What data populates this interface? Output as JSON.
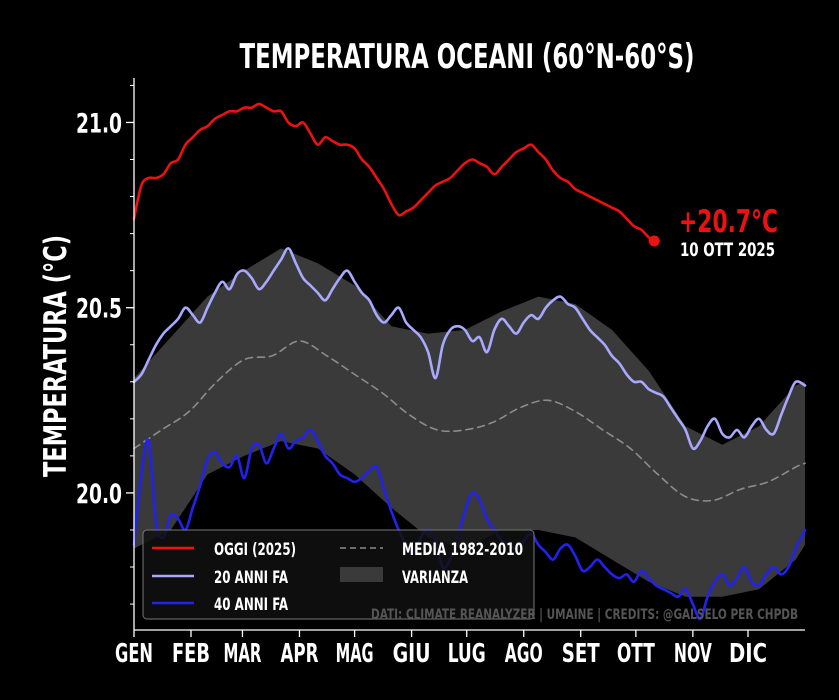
{
  "chart_data": {
    "type": "line",
    "title": "TEMPERATURA OCEANI (60°N-60°S)",
    "ylabel": "TEMPERATURA (°C)",
    "xlabel": "",
    "xlim": [
      0,
      365
    ],
    "ylim": [
      19.63,
      21.12
    ],
    "yticks": [
      {
        "v": 20.0,
        "label": "20.0"
      },
      {
        "v": 20.5,
        "label": "20.5"
      },
      {
        "v": 21.0,
        "label": "21.0"
      }
    ],
    "yminor_step": 0.1,
    "months": [
      {
        "label": "GEN",
        "d": 0
      },
      {
        "label": "FEB",
        "d": 31
      },
      {
        "label": "MAR",
        "d": 59
      },
      {
        "label": "APR",
        "d": 90
      },
      {
        "label": "MAG",
        "d": 120
      },
      {
        "label": "GIU",
        "d": 151
      },
      {
        "label": "LUG",
        "d": 181
      },
      {
        "label": "AGO",
        "d": 212
      },
      {
        "label": "SET",
        "d": 243
      },
      {
        "label": "OTT",
        "d": 273
      },
      {
        "label": "NOV",
        "d": 304
      },
      {
        "label": "DIC",
        "d": 334
      }
    ],
    "band": {
      "name": "VARIANZA",
      "color": "#3a3a3a",
      "x": [
        0,
        20,
        40,
        60,
        80,
        100,
        120,
        140,
        160,
        180,
        200,
        220,
        240,
        260,
        280,
        300,
        320,
        340,
        360,
        365
      ],
      "upper": [
        20.31,
        20.42,
        20.53,
        20.6,
        20.66,
        20.62,
        20.56,
        20.45,
        20.43,
        20.44,
        20.49,
        20.53,
        20.51,
        20.44,
        20.33,
        20.18,
        20.13,
        20.18,
        20.29,
        20.3
      ],
      "lower": [
        19.85,
        19.9,
        20.05,
        20.1,
        20.14,
        20.12,
        20.05,
        19.96,
        19.88,
        19.85,
        19.9,
        19.9,
        19.88,
        19.82,
        19.76,
        19.72,
        19.72,
        19.74,
        19.82,
        19.86
      ]
    },
    "series": [
      {
        "name": "OGGI (2025)",
        "color": "#ee1111",
        "width": 2.6,
        "x": [
          0,
          4,
          8,
          12,
          16,
          20,
          24,
          28,
          32,
          36,
          40,
          44,
          48,
          52,
          56,
          60,
          64,
          68,
          72,
          76,
          80,
          84,
          88,
          92,
          96,
          100,
          104,
          108,
          112,
          116,
          120,
          124,
          128,
          132,
          136,
          140,
          144,
          148,
          152,
          156,
          160,
          164,
          168,
          172,
          176,
          180,
          184,
          188,
          192,
          196,
          200,
          204,
          208,
          212,
          216,
          220,
          224,
          228,
          232,
          236,
          240,
          244,
          248,
          252,
          256,
          260,
          264,
          268,
          272,
          276,
          280,
          283
        ],
        "values": [
          20.74,
          20.83,
          20.85,
          20.85,
          20.86,
          20.89,
          20.9,
          20.94,
          20.96,
          20.98,
          20.99,
          21.01,
          21.02,
          21.03,
          21.03,
          21.04,
          21.04,
          21.05,
          21.04,
          21.03,
          21.03,
          21.0,
          20.99,
          21.0,
          20.97,
          20.94,
          20.96,
          20.95,
          20.94,
          20.94,
          20.93,
          20.9,
          20.88,
          20.85,
          20.82,
          20.78,
          20.75,
          20.76,
          20.77,
          20.79,
          20.81,
          20.83,
          20.84,
          20.85,
          20.87,
          20.89,
          20.9,
          20.89,
          20.88,
          20.86,
          20.88,
          20.9,
          20.92,
          20.93,
          20.94,
          20.92,
          20.9,
          20.87,
          20.85,
          20.84,
          20.82,
          20.81,
          20.8,
          20.79,
          20.78,
          20.77,
          20.76,
          20.74,
          20.72,
          20.71,
          20.69,
          20.68
        ]
      },
      {
        "name": "20 ANNI FA",
        "color": "#a8a8ff",
        "width": 2.6,
        "x": [
          0,
          4,
          8,
          12,
          16,
          20,
          24,
          28,
          32,
          36,
          40,
          44,
          48,
          52,
          56,
          60,
          64,
          68,
          72,
          76,
          80,
          84,
          88,
          92,
          96,
          100,
          104,
          108,
          112,
          116,
          120,
          124,
          128,
          132,
          136,
          140,
          144,
          148,
          152,
          156,
          160,
          164,
          168,
          172,
          176,
          180,
          184,
          188,
          192,
          196,
          200,
          204,
          208,
          212,
          216,
          220,
          224,
          228,
          232,
          236,
          240,
          244,
          248,
          252,
          256,
          260,
          264,
          268,
          272,
          276,
          280,
          284,
          288,
          292,
          296,
          300,
          304,
          308,
          312,
          316,
          320,
          324,
          328,
          332,
          336,
          340,
          344,
          348,
          352,
          356,
          360,
          365
        ],
        "values": [
          20.3,
          20.32,
          20.36,
          20.4,
          20.43,
          20.45,
          20.47,
          20.5,
          20.48,
          20.46,
          20.5,
          20.54,
          20.57,
          20.55,
          20.59,
          20.6,
          20.58,
          20.55,
          20.57,
          20.6,
          20.63,
          20.66,
          20.62,
          20.58,
          20.56,
          20.54,
          20.52,
          20.55,
          20.58,
          20.6,
          20.57,
          20.54,
          20.52,
          20.48,
          20.46,
          20.48,
          20.5,
          20.46,
          20.44,
          20.42,
          20.38,
          20.31,
          20.4,
          20.44,
          20.45,
          20.44,
          20.41,
          20.42,
          20.38,
          20.44,
          20.47,
          20.45,
          20.43,
          20.46,
          20.48,
          20.47,
          20.5,
          20.52,
          20.53,
          20.51,
          20.5,
          20.47,
          20.44,
          20.42,
          20.4,
          20.37,
          20.35,
          20.32,
          20.3,
          20.3,
          20.28,
          20.27,
          20.26,
          20.23,
          20.2,
          20.17,
          20.12,
          20.14,
          20.18,
          20.2,
          20.16,
          20.15,
          20.17,
          20.15,
          20.18,
          20.2,
          20.17,
          20.16,
          20.21,
          20.26,
          20.3,
          20.29
        ]
      },
      {
        "name": "40 ANNI FA",
        "color": "#2222ee",
        "width": 2.6,
        "x": [
          0,
          4,
          8,
          12,
          16,
          20,
          24,
          28,
          32,
          36,
          40,
          44,
          48,
          52,
          56,
          60,
          64,
          68,
          72,
          76,
          80,
          84,
          88,
          92,
          96,
          100,
          104,
          108,
          112,
          116,
          120,
          124,
          128,
          132,
          136,
          140,
          144,
          148,
          152,
          156,
          160,
          164,
          168,
          172,
          176,
          180,
          184,
          188,
          192,
          196,
          200,
          204,
          208,
          212,
          216,
          220,
          224,
          228,
          232,
          236,
          240,
          244,
          248,
          252,
          256,
          260,
          264,
          268,
          272,
          276,
          280,
          284,
          288,
          292,
          296,
          300,
          304,
          308,
          312,
          316,
          320,
          324,
          328,
          332,
          336,
          340,
          344,
          348,
          352,
          356,
          360,
          365
        ],
        "values": [
          19.86,
          20.05,
          20.14,
          19.92,
          19.88,
          19.94,
          19.93,
          19.9,
          19.96,
          20.02,
          20.09,
          20.11,
          20.08,
          20.07,
          20.1,
          20.04,
          20.12,
          20.13,
          20.08,
          20.12,
          20.16,
          20.12,
          20.14,
          20.15,
          20.17,
          20.14,
          20.1,
          20.08,
          20.05,
          20.04,
          20.03,
          20.04,
          20.06,
          20.07,
          20.01,
          19.95,
          19.9,
          19.86,
          19.84,
          19.88,
          19.9,
          19.87,
          19.8,
          19.82,
          19.88,
          19.95,
          20.0,
          19.98,
          19.93,
          19.9,
          19.87,
          19.86,
          19.85,
          19.87,
          19.89,
          19.86,
          19.84,
          19.82,
          19.85,
          19.86,
          19.83,
          19.79,
          19.8,
          19.82,
          19.8,
          19.78,
          19.77,
          19.78,
          19.76,
          19.79,
          19.77,
          19.75,
          19.74,
          19.73,
          19.72,
          19.74,
          19.7,
          19.66,
          19.72,
          19.76,
          19.78,
          19.75,
          19.77,
          19.8,
          19.76,
          19.75,
          19.78,
          19.8,
          19.78,
          19.8,
          19.85,
          19.9
        ]
      },
      {
        "name": "MEDIA 1982-2010",
        "color": "#8c8c8c",
        "width": 1.6,
        "dashed": true,
        "x": [
          0,
          15,
          30,
          45,
          60,
          75,
          90,
          105,
          120,
          135,
          150,
          165,
          180,
          195,
          210,
          225,
          240,
          255,
          270,
          285,
          300,
          315,
          330,
          345,
          360,
          365
        ],
        "values": [
          20.12,
          20.17,
          20.22,
          20.3,
          20.36,
          20.37,
          20.41,
          20.37,
          20.32,
          20.27,
          20.21,
          20.17,
          20.17,
          20.19,
          20.23,
          20.25,
          20.22,
          20.17,
          20.12,
          20.05,
          19.99,
          19.98,
          20.01,
          20.03,
          20.07,
          20.08
        ]
      }
    ],
    "latest": {
      "value_label": "+20.7°C",
      "date_label": "10 OTT 2025",
      "x": 283,
      "y": 20.68
    },
    "legend": {
      "position": "lower-left",
      "entries": [
        {
          "label": "OGGI (2025)",
          "kind": "line",
          "color": "#ee1111"
        },
        {
          "label": "20 ANNI FA",
          "kind": "line",
          "color": "#a8a8ff"
        },
        {
          "label": "40 ANNI FA",
          "kind": "line",
          "color": "#2222ee"
        },
        {
          "label": "MEDIA 1982-2010",
          "kind": "dash",
          "color": "#8c8c8c"
        },
        {
          "label": "VARIANZA",
          "kind": "patch",
          "color": "#3a3a3a"
        }
      ]
    },
    "credits": "DATI: CLIMATE REANALYZER | UMAINE | CREDITS: @GALSELO PER CHPDB"
  }
}
